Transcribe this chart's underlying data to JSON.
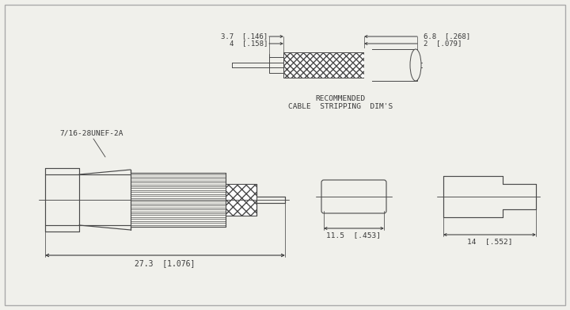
{
  "background_color": "#f0f0eb",
  "line_color": "#4a4a4a",
  "text_color": "#3a3a3a",
  "fig_width": 7.2,
  "fig_height": 3.91,
  "dpi": 100,
  "annotations": {
    "thread_label": "7/16-28UNEF-2A",
    "recommended_line1": "RECOMMENDED",
    "recommended_line2": "CABLE  STRIPPING  DIM'S",
    "dim_top_left_1": "3.7  [.146]",
    "dim_top_left_2": "4  [.158]",
    "dim_top_right_1": "6.8  [.268]",
    "dim_top_right_2": "2  [.079]",
    "dim_main_bottom": "27.3  [1.076]",
    "dim_mid_bottom": "11.5  [.453]",
    "dim_right_bottom": "14  [.552]"
  }
}
